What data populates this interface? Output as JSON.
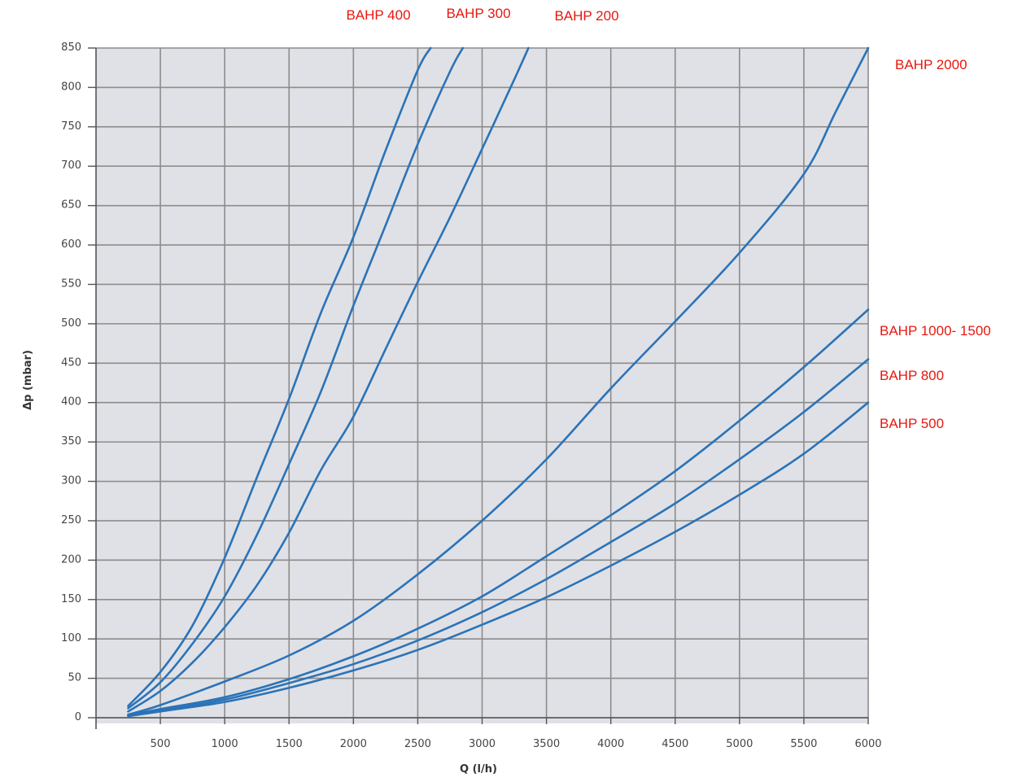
{
  "chart_data": {
    "type": "line",
    "title": "",
    "xlabel": "Q (l/h)",
    "ylabel": "Δp (mbar)",
    "xlim": [
      0,
      6000
    ],
    "ylim": [
      0,
      850
    ],
    "x_ticks": [
      500,
      1000,
      1500,
      2000,
      2500,
      3000,
      3500,
      4000,
      4500,
      5000,
      5500,
      6000
    ],
    "y_ticks": [
      0,
      50,
      100,
      150,
      200,
      250,
      300,
      350,
      400,
      450,
      500,
      550,
      600,
      650,
      700,
      750,
      800,
      850
    ],
    "grid": true,
    "plot_background": "#e0e1e6",
    "grid_color": "#8c8c8c",
    "line_color": "#2b73b8",
    "label_color": "#e8170f",
    "series": [
      {
        "name": "BAHP 400",
        "x": [
          250,
          500,
          750,
          1000,
          1250,
          1500,
          1750,
          2000,
          2250,
          2500,
          2600
        ],
        "y": [
          15,
          58,
          117,
          203,
          305,
          405,
          515,
          610,
          720,
          822,
          850
        ]
      },
      {
        "name": "BAHP 300",
        "x": [
          250,
          500,
          750,
          1000,
          1250,
          1500,
          1750,
          2000,
          2250,
          2500,
          2750,
          2850
        ],
        "y": [
          12,
          45,
          94,
          154,
          232,
          322,
          415,
          523,
          625,
          728,
          820,
          850
        ]
      },
      {
        "name": "BAHP 200",
        "x": [
          250,
          500,
          750,
          1000,
          1250,
          1500,
          1750,
          2000,
          2250,
          2500,
          2750,
          3000,
          3250,
          3360
        ],
        "y": [
          8,
          34,
          70,
          115,
          168,
          235,
          315,
          382,
          468,
          553,
          635,
          722,
          810,
          850
        ]
      },
      {
        "name": "BAHP  2000",
        "x": [
          250,
          500,
          1000,
          1500,
          2000,
          2500,
          3000,
          3500,
          4000,
          4500,
          5000,
          5500,
          5750,
          6000
        ],
        "y": [
          4,
          16,
          46,
          79,
          123,
          182,
          250,
          328,
          418,
          503,
          590,
          690,
          770,
          850
        ]
      },
      {
        "name": "BAHP 1000- 1500",
        "x": [
          250,
          500,
          1000,
          1500,
          2000,
          2500,
          3000,
          3500,
          4000,
          4500,
          5000,
          5500,
          6000
        ],
        "y": [
          3,
          11,
          26,
          49,
          78,
          113,
          154,
          205,
          257,
          313,
          377,
          445,
          518
        ]
      },
      {
        "name": "BAHP 800",
        "x": [
          250,
          500,
          1000,
          1500,
          2000,
          2500,
          3000,
          3500,
          4000,
          4500,
          5000,
          5500,
          6000
        ],
        "y": [
          3,
          9,
          23,
          44,
          68,
          98,
          134,
          176,
          223,
          272,
          328,
          388,
          455
        ]
      },
      {
        "name": "BAHP 500",
        "x": [
          250,
          500,
          1000,
          1500,
          2000,
          2500,
          3000,
          3500,
          4000,
          4500,
          5000,
          5500,
          6000
        ],
        "y": [
          2,
          8,
          20,
          38,
          60,
          86,
          118,
          153,
          193,
          236,
          283,
          335,
          400
        ]
      }
    ],
    "series_labels": [
      {
        "text": "BAHP 400",
        "anchor": "top"
      },
      {
        "text": "BAHP 300",
        "anchor": "top"
      },
      {
        "text": "BAHP 200",
        "anchor": "top"
      },
      {
        "text": "BAHP  2000",
        "anchor": "right"
      },
      {
        "text": "BAHP 1000- 1500",
        "anchor": "right"
      },
      {
        "text": "BAHP 800",
        "anchor": "right"
      },
      {
        "text": "BAHP 500",
        "anchor": "right"
      }
    ]
  }
}
